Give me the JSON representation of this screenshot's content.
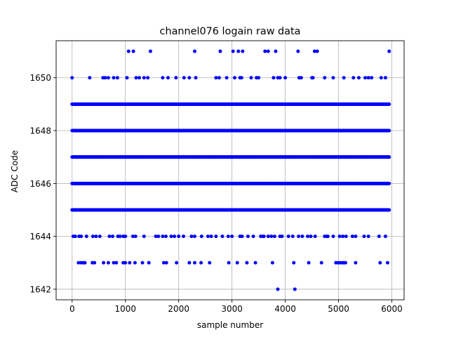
{
  "chart_data": {
    "type": "scatter",
    "title": "channel076 logain raw data",
    "xlabel": "sample number",
    "ylabel": "ADC Code",
    "xlim": [
      -300,
      6230
    ],
    "ylim": [
      1641.6,
      1651.4
    ],
    "xticks": [
      0,
      1000,
      2000,
      3000,
      4000,
      5000,
      6000
    ],
    "yticks": [
      1642,
      1644,
      1646,
      1648,
      1650
    ],
    "xtick_labels": [
      "0",
      "1000",
      "2000",
      "3000",
      "4000",
      "5000",
      "6000"
    ],
    "ytick_labels": [
      "1642",
      "1644",
      "1646",
      "1648",
      "1650"
    ],
    "grid": true,
    "marker_color": "#0000ff",
    "x_max": 5950,
    "dense_levels": [
      1645,
      1646,
      1647,
      1648,
      1649
    ],
    "points": [
      [
        1060,
        1651
      ],
      [
        1150,
        1651
      ],
      [
        1470,
        1651
      ],
      [
        2300,
        1651
      ],
      [
        2780,
        1651
      ],
      [
        3020,
        1651
      ],
      [
        3120,
        1651
      ],
      [
        3200,
        1651
      ],
      [
        3620,
        1651
      ],
      [
        3680,
        1651
      ],
      [
        3820,
        1651
      ],
      [
        4240,
        1651
      ],
      [
        4550,
        1651
      ],
      [
        4600,
        1651
      ],
      [
        5950,
        1651
      ],
      [
        0,
        1650
      ],
      [
        330,
        1650
      ],
      [
        580,
        1650
      ],
      [
        620,
        1650
      ],
      [
        680,
        1650
      ],
      [
        780,
        1650
      ],
      [
        850,
        1650
      ],
      [
        1030,
        1650
      ],
      [
        1200,
        1650
      ],
      [
        1260,
        1650
      ],
      [
        1350,
        1650
      ],
      [
        1420,
        1650
      ],
      [
        1700,
        1650
      ],
      [
        1800,
        1650
      ],
      [
        1950,
        1650
      ],
      [
        2100,
        1650
      ],
      [
        2200,
        1650
      ],
      [
        2320,
        1650
      ],
      [
        2700,
        1650
      ],
      [
        2760,
        1650
      ],
      [
        2900,
        1650
      ],
      [
        3050,
        1650
      ],
      [
        3150,
        1650
      ],
      [
        3180,
        1650
      ],
      [
        3360,
        1650
      ],
      [
        3460,
        1650
      ],
      [
        3500,
        1650
      ],
      [
        3780,
        1650
      ],
      [
        3860,
        1650
      ],
      [
        3900,
        1650
      ],
      [
        4000,
        1650
      ],
      [
        4260,
        1650
      ],
      [
        4300,
        1650
      ],
      [
        4500,
        1650
      ],
      [
        4520,
        1650
      ],
      [
        4740,
        1650
      ],
      [
        4900,
        1650
      ],
      [
        5100,
        1650
      ],
      [
        5280,
        1650
      ],
      [
        5380,
        1650
      ],
      [
        5500,
        1650
      ],
      [
        5560,
        1650
      ],
      [
        5620,
        1650
      ],
      [
        5800,
        1650
      ],
      [
        5880,
        1650
      ],
      [
        20,
        1644
      ],
      [
        60,
        1644
      ],
      [
        130,
        1644
      ],
      [
        170,
        1644
      ],
      [
        270,
        1644
      ],
      [
        390,
        1644
      ],
      [
        450,
        1644
      ],
      [
        520,
        1644
      ],
      [
        700,
        1644
      ],
      [
        760,
        1644
      ],
      [
        860,
        1644
      ],
      [
        900,
        1644
      ],
      [
        960,
        1644
      ],
      [
        1000,
        1644
      ],
      [
        1140,
        1644
      ],
      [
        1190,
        1644
      ],
      [
        1350,
        1644
      ],
      [
        1570,
        1644
      ],
      [
        1620,
        1644
      ],
      [
        1700,
        1644
      ],
      [
        1760,
        1644
      ],
      [
        1860,
        1644
      ],
      [
        1920,
        1644
      ],
      [
        2000,
        1644
      ],
      [
        2090,
        1644
      ],
      [
        2240,
        1644
      ],
      [
        2300,
        1644
      ],
      [
        2430,
        1644
      ],
      [
        2550,
        1644
      ],
      [
        2610,
        1644
      ],
      [
        2700,
        1644
      ],
      [
        2820,
        1644
      ],
      [
        2930,
        1644
      ],
      [
        3000,
        1644
      ],
      [
        3150,
        1644
      ],
      [
        3190,
        1644
      ],
      [
        3300,
        1644
      ],
      [
        3400,
        1644
      ],
      [
        3540,
        1644
      ],
      [
        3580,
        1644
      ],
      [
        3600,
        1644
      ],
      [
        3680,
        1644
      ],
      [
        3740,
        1644
      ],
      [
        3800,
        1644
      ],
      [
        3900,
        1644
      ],
      [
        3940,
        1644
      ],
      [
        4060,
        1644
      ],
      [
        4140,
        1644
      ],
      [
        4250,
        1644
      ],
      [
        4320,
        1644
      ],
      [
        4420,
        1644
      ],
      [
        4480,
        1644
      ],
      [
        4560,
        1644
      ],
      [
        4740,
        1644
      ],
      [
        4780,
        1644
      ],
      [
        4800,
        1644
      ],
      [
        4900,
        1644
      ],
      [
        5020,
        1644
      ],
      [
        5080,
        1644
      ],
      [
        5140,
        1644
      ],
      [
        5260,
        1644
      ],
      [
        5320,
        1644
      ],
      [
        5480,
        1644
      ],
      [
        5560,
        1644
      ],
      [
        5760,
        1644
      ],
      [
        5880,
        1644
      ],
      [
        120,
        1643
      ],
      [
        170,
        1643
      ],
      [
        210,
        1643
      ],
      [
        240,
        1643
      ],
      [
        380,
        1643
      ],
      [
        420,
        1643
      ],
      [
        590,
        1643
      ],
      [
        680,
        1643
      ],
      [
        780,
        1643
      ],
      [
        830,
        1643
      ],
      [
        960,
        1643
      ],
      [
        1000,
        1643
      ],
      [
        1080,
        1643
      ],
      [
        1180,
        1643
      ],
      [
        1320,
        1643
      ],
      [
        1440,
        1643
      ],
      [
        1720,
        1643
      ],
      [
        1770,
        1643
      ],
      [
        1960,
        1643
      ],
      [
        2200,
        1643
      ],
      [
        2300,
        1643
      ],
      [
        2420,
        1643
      ],
      [
        2580,
        1643
      ],
      [
        2940,
        1643
      ],
      [
        3100,
        1643
      ],
      [
        3280,
        1643
      ],
      [
        3440,
        1643
      ],
      [
        3760,
        1643
      ],
      [
        4160,
        1643
      ],
      [
        4440,
        1643
      ],
      [
        4680,
        1643
      ],
      [
        4950,
        1643
      ],
      [
        4990,
        1643
      ],
      [
        5030,
        1643
      ],
      [
        5070,
        1643
      ],
      [
        5100,
        1643
      ],
      [
        5130,
        1643
      ],
      [
        5320,
        1643
      ],
      [
        5780,
        1643
      ],
      [
        5920,
        1643
      ],
      [
        3860,
        1642
      ],
      [
        4180,
        1642
      ]
    ]
  }
}
